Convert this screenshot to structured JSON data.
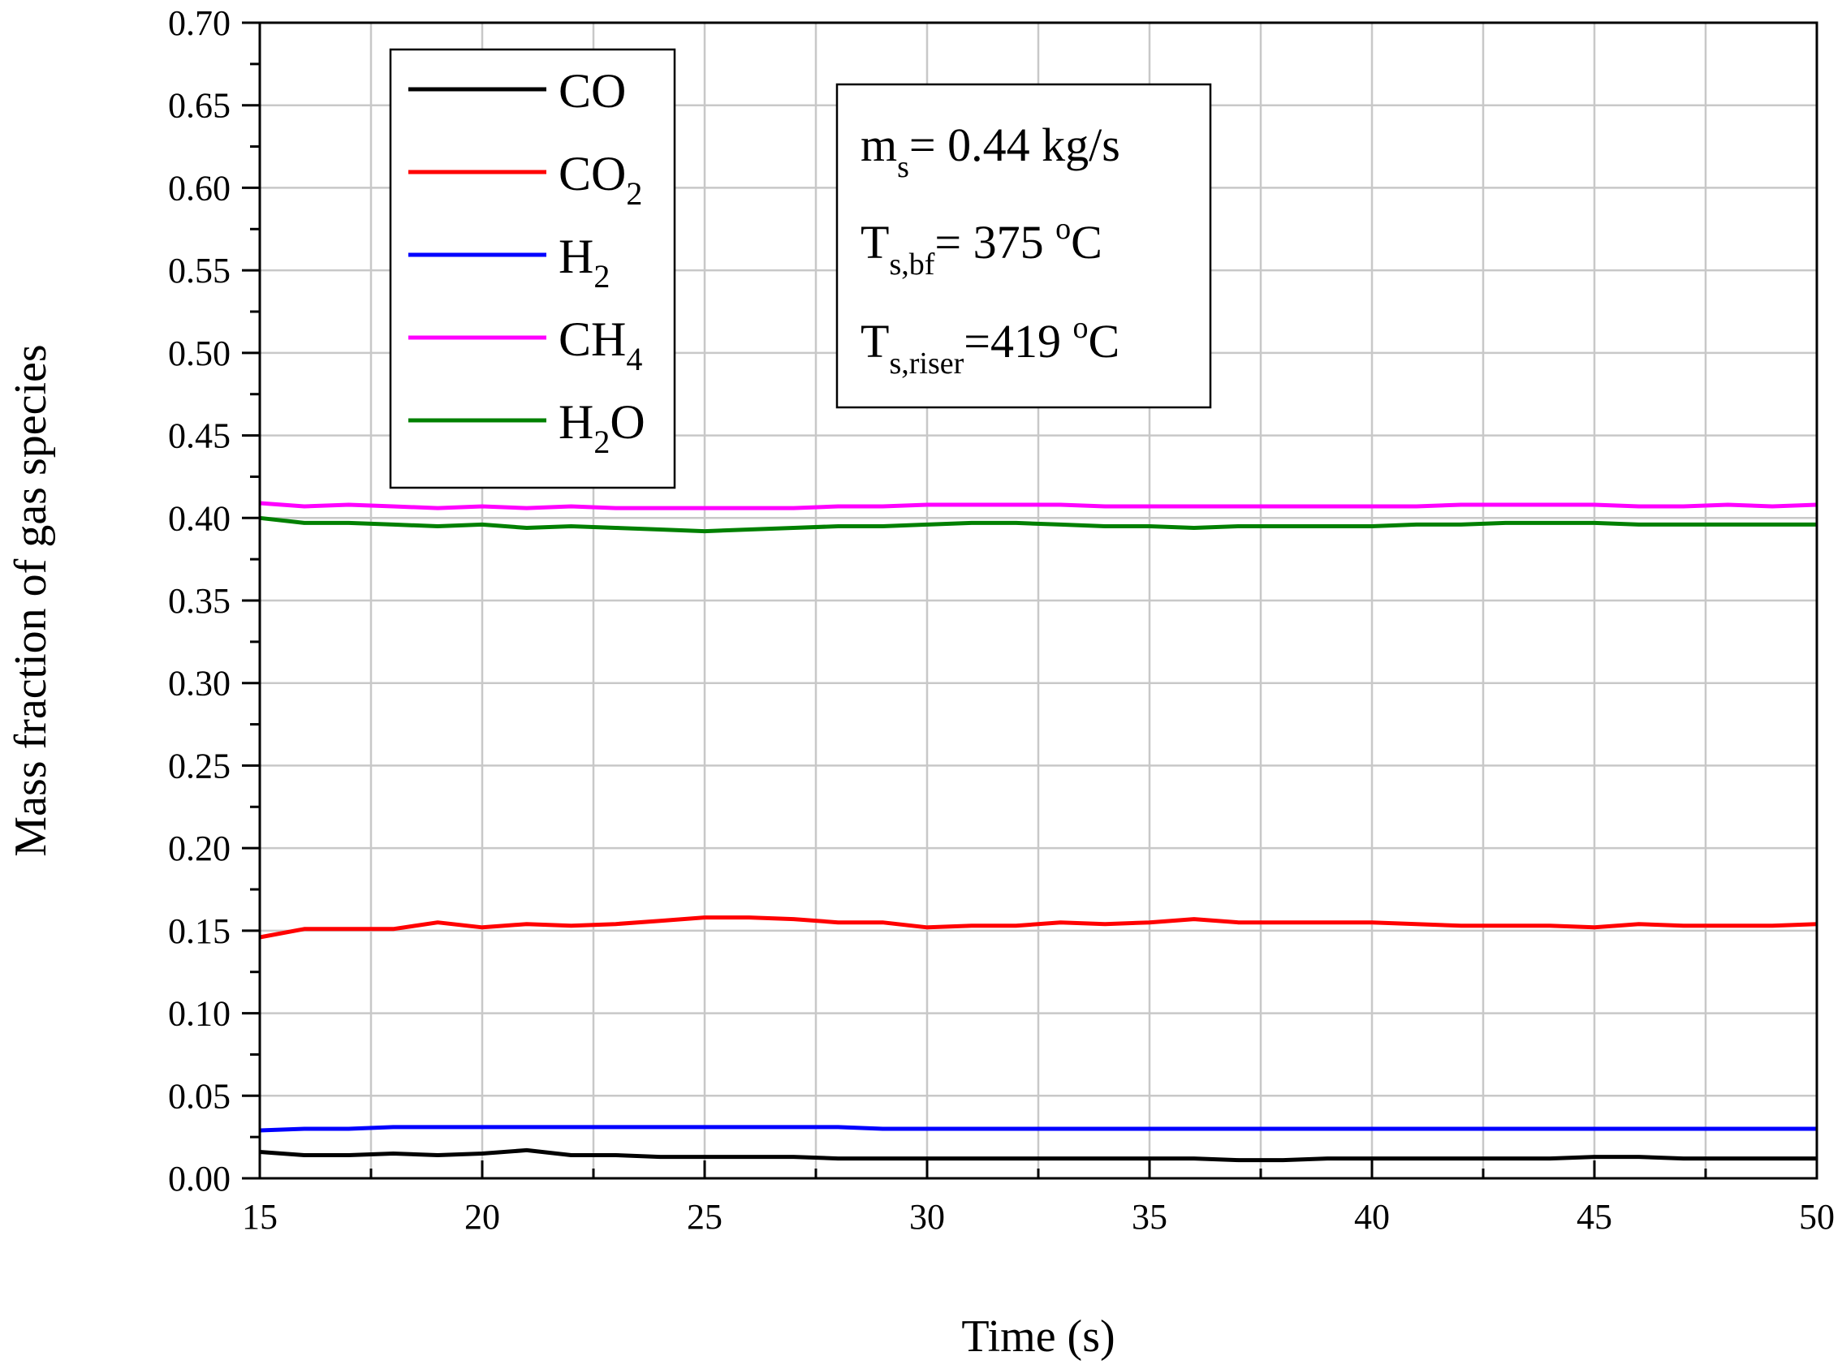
{
  "chart_data": {
    "type": "line",
    "xlabel": "Time (s)",
    "ylabel": "Mass fraction of gas species",
    "xlim": [
      15,
      50
    ],
    "ylim": [
      0.0,
      0.7
    ],
    "grid": true,
    "legend_position": "top-left",
    "x_ticks": [
      "15",
      "20",
      "25",
      "30",
      "35",
      "40",
      "45",
      "50"
    ],
    "y_ticks": [
      "0.00",
      "0.05",
      "0.10",
      "0.15",
      "0.20",
      "0.25",
      "0.30",
      "0.35",
      "0.40",
      "0.45",
      "0.50",
      "0.55",
      "0.60",
      "0.65",
      "0.70"
    ],
    "x": [
      15,
      16,
      17,
      18,
      19,
      20,
      21,
      22,
      23,
      24,
      25,
      26,
      27,
      28,
      29,
      30,
      31,
      32,
      33,
      34,
      35,
      36,
      37,
      38,
      39,
      40,
      41,
      42,
      43,
      44,
      45,
      46,
      47,
      48,
      49,
      50
    ],
    "series": [
      {
        "name": "CO",
        "label_main": "CO",
        "label_sub": "",
        "label_tail": "",
        "color": "#000000",
        "values": [
          0.016,
          0.014,
          0.014,
          0.015,
          0.014,
          0.015,
          0.017,
          0.014,
          0.014,
          0.013,
          0.013,
          0.013,
          0.013,
          0.012,
          0.012,
          0.012,
          0.012,
          0.012,
          0.012,
          0.012,
          0.012,
          0.012,
          0.011,
          0.011,
          0.012,
          0.012,
          0.012,
          0.012,
          0.012,
          0.012,
          0.013,
          0.013,
          0.012,
          0.012,
          0.012,
          0.012
        ]
      },
      {
        "name": "CO2",
        "label_main": "CO",
        "label_sub": "2",
        "label_tail": "",
        "color": "#ff0000",
        "values": [
          0.146,
          0.151,
          0.151,
          0.151,
          0.155,
          0.152,
          0.154,
          0.153,
          0.154,
          0.156,
          0.158,
          0.158,
          0.157,
          0.155,
          0.155,
          0.152,
          0.153,
          0.153,
          0.155,
          0.154,
          0.155,
          0.157,
          0.155,
          0.155,
          0.155,
          0.155,
          0.154,
          0.153,
          0.153,
          0.153,
          0.152,
          0.154,
          0.153,
          0.153,
          0.153,
          0.154
        ]
      },
      {
        "name": "H2",
        "label_main": "H",
        "label_sub": "2",
        "label_tail": "",
        "color": "#0000ff",
        "values": [
          0.029,
          0.03,
          0.03,
          0.031,
          0.031,
          0.031,
          0.031,
          0.031,
          0.031,
          0.031,
          0.031,
          0.031,
          0.031,
          0.031,
          0.03,
          0.03,
          0.03,
          0.03,
          0.03,
          0.03,
          0.03,
          0.03,
          0.03,
          0.03,
          0.03,
          0.03,
          0.03,
          0.03,
          0.03,
          0.03,
          0.03,
          0.03,
          0.03,
          0.03,
          0.03,
          0.03
        ]
      },
      {
        "name": "CH4",
        "label_main": "CH",
        "label_sub": "4",
        "label_tail": "",
        "color": "#ff00ff",
        "values": [
          0.409,
          0.407,
          0.408,
          0.407,
          0.406,
          0.407,
          0.406,
          0.407,
          0.406,
          0.406,
          0.406,
          0.406,
          0.406,
          0.407,
          0.407,
          0.408,
          0.408,
          0.408,
          0.408,
          0.407,
          0.407,
          0.407,
          0.407,
          0.407,
          0.407,
          0.407,
          0.407,
          0.408,
          0.408,
          0.408,
          0.408,
          0.407,
          0.407,
          0.408,
          0.407,
          0.408
        ]
      },
      {
        "name": "H2O",
        "label_main": "H",
        "label_sub": "2",
        "label_tail": "O",
        "color": "#008000",
        "values": [
          0.4,
          0.397,
          0.397,
          0.396,
          0.395,
          0.396,
          0.394,
          0.395,
          0.394,
          0.393,
          0.392,
          0.393,
          0.394,
          0.395,
          0.395,
          0.396,
          0.397,
          0.397,
          0.396,
          0.395,
          0.395,
          0.394,
          0.395,
          0.395,
          0.395,
          0.395,
          0.396,
          0.396,
          0.397,
          0.397,
          0.397,
          0.396,
          0.396,
          0.396,
          0.396,
          0.396
        ]
      }
    ],
    "annotations": [
      {
        "main": "m",
        "sub": "s",
        "sup": "",
        "text": "= 0.44 kg/s"
      },
      {
        "main": "T",
        "sub": "s,bf",
        "pre": "= 375 ",
        "sup": "o",
        "text": "C"
      },
      {
        "main": "T",
        "sub": "s,riser",
        "pre": "=419 ",
        "sup": "o",
        "text": "C"
      }
    ]
  }
}
